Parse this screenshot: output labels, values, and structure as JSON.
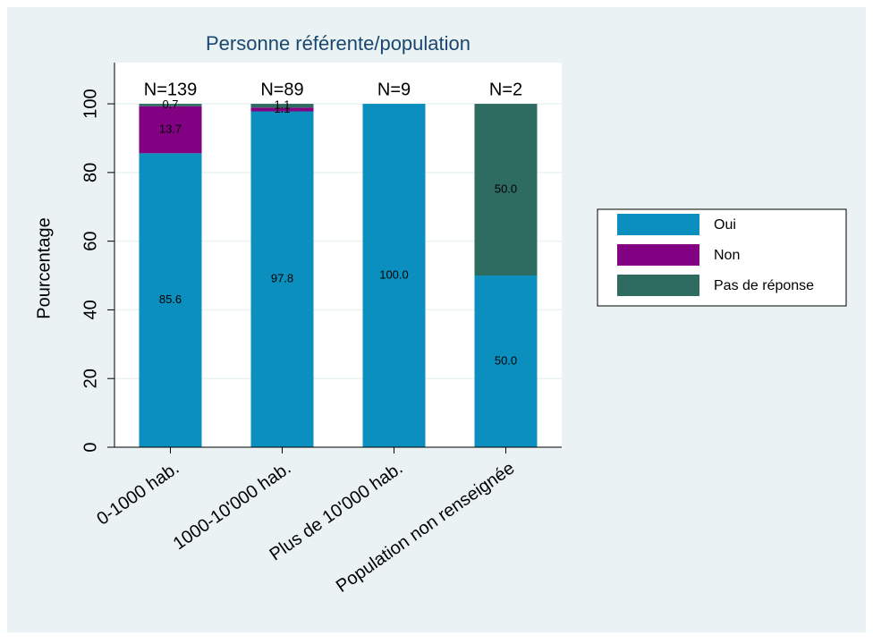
{
  "chart_data": {
    "type": "stacked_bar",
    "title": "Personne référente/population",
    "ylabel": "Pourcentage",
    "categories": [
      "0-1000 hab.",
      "1000-10'000 hab.",
      "Plus de 10'000 hab.",
      "Population non renseignée"
    ],
    "annotations": [
      "N=139",
      "N=89",
      "N=9",
      "N=2"
    ],
    "series": [
      {
        "name": "Oui",
        "color": "#0b8fbf",
        "values": [
          85.6,
          97.8,
          100,
          50
        ],
        "value_labels": [
          "85.6",
          "97.8",
          "100.0",
          "50.0"
        ]
      },
      {
        "name": "Non",
        "color": "#820082",
        "values": [
          13.7,
          1.1,
          0,
          0
        ],
        "value_labels": [
          "13.7",
          "1.1",
          null,
          null
        ]
      },
      {
        "name": "Pas de réponse",
        "color": "#2e6b60",
        "values": [
          0.7,
          1.1,
          0,
          50
        ],
        "value_labels": [
          "0.7",
          "1.1",
          null,
          "50.0"
        ]
      }
    ],
    "ylim": [
      0,
      112
    ],
    "yticks": [
      0,
      20,
      40,
      60,
      80,
      100
    ],
    "grid": true,
    "legend": "right"
  }
}
